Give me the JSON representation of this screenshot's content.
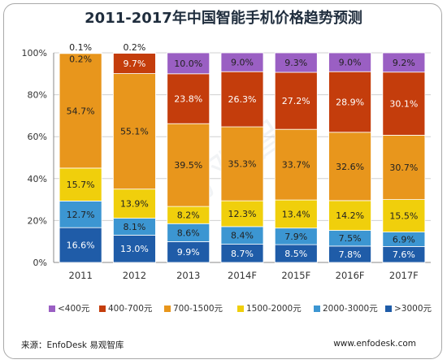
{
  "chart_data": {
    "type": "bar",
    "stacked": true,
    "title": "2011-2017年中国智能手机价格趋势预测",
    "categories": [
      "2011",
      "2012",
      "2013",
      "2014F",
      "2015F",
      "2016F",
      "2017F"
    ],
    "ylim": [
      0,
      100
    ],
    "yticks": [
      "0%",
      "20%",
      "40%",
      "60%",
      "80%",
      "100%"
    ],
    "grid": true,
    "legend_position": "bottom",
    "series": [
      {
        "name": ">3000元",
        "color": "#1f5ca8",
        "values": [
          16.6,
          13.0,
          9.9,
          8.7,
          8.5,
          7.8,
          7.6
        ]
      },
      {
        "name": "2000-3000元",
        "color": "#3c96d2",
        "values": [
          12.7,
          8.1,
          8.6,
          8.4,
          7.9,
          7.5,
          6.9
        ]
      },
      {
        "name": "1500-2000元",
        "color": "#f0cf0c",
        "values": [
          15.7,
          13.9,
          8.2,
          12.3,
          13.4,
          14.2,
          15.5
        ]
      },
      {
        "name": "700-1500元",
        "color": "#e8961c",
        "values": [
          54.7,
          55.1,
          39.5,
          35.3,
          33.7,
          32.6,
          30.7
        ]
      },
      {
        "name": "400-700元",
        "color": "#c43d0c",
        "values": [
          0.2,
          9.7,
          23.8,
          26.3,
          27.2,
          28.9,
          30.1
        ]
      },
      {
        "name": "<400元",
        "color": "#9a5fc3",
        "values": [
          0.1,
          0.2,
          10.0,
          9.0,
          9.3,
          9.0,
          9.2
        ]
      }
    ],
    "data_labels": [
      [
        "16.6%",
        "13.0%",
        "9.9%",
        "8.7%",
        "8.5%",
        "7.8%",
        "7.6%"
      ],
      [
        "12.7%",
        "8.1%",
        "8.6%",
        "8.4%",
        "7.9%",
        "7.5%",
        "6.9%"
      ],
      [
        "15.7%",
        "13.9%",
        "8.2%",
        "12.3%",
        "13.4%",
        "14.2%",
        "15.5%"
      ],
      [
        "54.7%",
        "55.1%",
        "39.5%",
        "35.3%",
        "33.7%",
        "32.6%",
        "30.7%"
      ],
      [
        "0.2%",
        "9.7%",
        "23.8%",
        "26.3%",
        "27.2%",
        "28.9%",
        "30.1%"
      ],
      [
        "0.1%",
        "0.2%",
        "10.0%",
        "9.0%",
        "9.3%",
        "9.0%",
        "9.2%"
      ]
    ]
  },
  "legend": {
    "items": [
      {
        "label": "<400元",
        "color": "#9a5fc3"
      },
      {
        "label": "400-700元",
        "color": "#c43d0c"
      },
      {
        "label": "700-1500元",
        "color": "#e8961c"
      },
      {
        "label": "1500-2000元",
        "color": "#f0cf0c"
      },
      {
        "label": "2000-3000元",
        "color": "#3c96d2"
      },
      {
        "label": ">3000元",
        "color": "#1f5ca8"
      }
    ]
  },
  "footer": {
    "source": "来源：EnfoDesk 易观智库",
    "site": "www.enfodesk.com"
  },
  "watermark": "易观智库"
}
